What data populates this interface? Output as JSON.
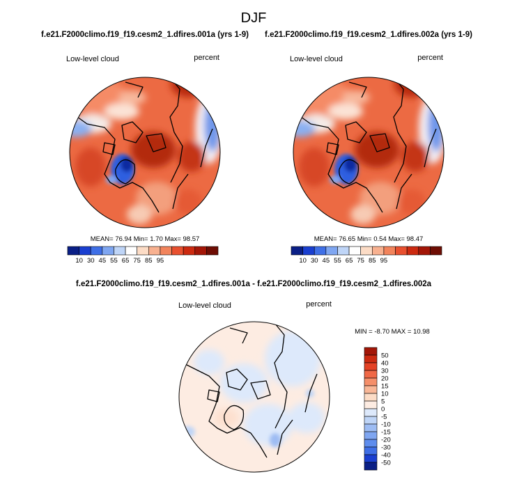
{
  "chart_data": [
    {
      "type": "heatmap",
      "projection": "north-polar-stereographic",
      "case_title": "f.e21.F2000climo.f19_f19.cesm2_1.dfires.001a (yrs 1-9)",
      "variable": "Low-level cloud",
      "units": "percent",
      "stats_text": "MEAN=  76.94  Min=   1.70  Max=  98.57",
      "stats": {
        "mean": 76.94,
        "min": 1.7,
        "max": 98.57
      },
      "colorbar_levels": [
        "10",
        "30",
        "45",
        "55",
        "65",
        "75",
        "85",
        "95"
      ],
      "colorbar_colors": [
        "#0a1f86",
        "#1a3fd0",
        "#3f6fe6",
        "#7fa6f1",
        "#bfd5f7",
        "#ffffff",
        "#fcdcc6",
        "#f8b190",
        "#f2845c",
        "#e8502f",
        "#cc2a10",
        "#a31607",
        "#6e0d04"
      ],
      "colorbar_orientation": "horizontal"
    },
    {
      "type": "heatmap",
      "projection": "north-polar-stereographic",
      "case_title": "f.e21.F2000climo.f19_f19.cesm2_1.dfires.002a (yrs 1-9)",
      "variable": "Low-level cloud",
      "units": "percent",
      "stats_text": "MEAN=  76.65  Min=   0.54  Max=  98.47",
      "stats": {
        "mean": 76.65,
        "min": 0.54,
        "max": 98.47
      },
      "colorbar_levels": [
        "10",
        "30",
        "45",
        "55",
        "65",
        "75",
        "85",
        "95"
      ],
      "colorbar_colors": [
        "#0a1f86",
        "#1a3fd0",
        "#3f6fe6",
        "#7fa6f1",
        "#bfd5f7",
        "#ffffff",
        "#fcdcc6",
        "#f8b190",
        "#f2845c",
        "#e8502f",
        "#cc2a10",
        "#a31607",
        "#6e0d04"
      ],
      "colorbar_orientation": "horizontal"
    },
    {
      "type": "heatmap",
      "projection": "north-polar-stereographic",
      "case_title": "f.e21.F2000climo.f19_f19.cesm2_1.dfires.001a - f.e21.F2000climo.f19_f19.cesm2_1.dfires.002a",
      "variable": "Low-level cloud",
      "units": "percent",
      "stats_text": "MIN =  -8.70 MAX =  10.98",
      "stats": {
        "min": -8.7,
        "max": 10.98
      },
      "colorbar_levels": [
        "50",
        "40",
        "30",
        "20",
        "15",
        "10",
        "5",
        "0",
        "-5",
        "-10",
        "-15",
        "-20",
        "-30",
        "-40",
        "-50"
      ],
      "colorbar_colors": [
        "#a31607",
        "#cc2a10",
        "#e44225",
        "#f06846",
        "#f58f6a",
        "#f9b797",
        "#fcdcc6",
        "#fdece2",
        "#dde9fb",
        "#bfd5f7",
        "#9dbcf3",
        "#7fa6f1",
        "#5e8ded",
        "#3f6fe6",
        "#1a3fd0",
        "#0a1f86"
      ],
      "colorbar_orientation": "vertical"
    }
  ],
  "figure": {
    "title": "DJF"
  }
}
